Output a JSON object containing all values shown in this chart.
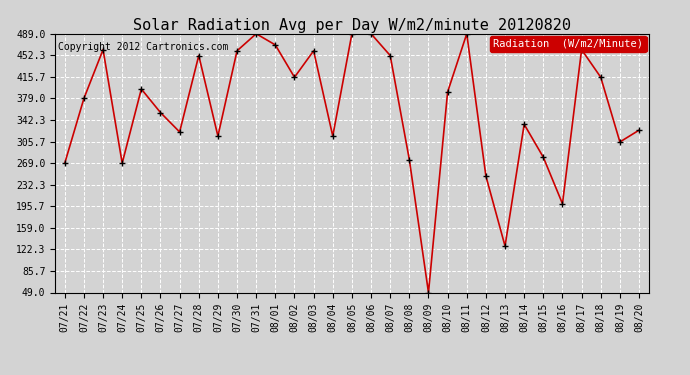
{
  "title": "Solar Radiation Avg per Day W/m2/minute 20120820",
  "copyright": "Copyright 2012 Cartronics.com",
  "legend_label": "Radiation  (W/m2/Minute)",
  "background_color": "#d3d3d3",
  "plot_bg_color": "#d3d3d3",
  "line_color": "#cc0000",
  "marker_color": "#000000",
  "legend_bg": "#cc0000",
  "legend_text_color": "#ffffff",
  "ytick_values": [
    49.0,
    85.7,
    122.3,
    159.0,
    195.7,
    232.3,
    269.0,
    305.7,
    342.3,
    379.0,
    415.7,
    452.3,
    489.0
  ],
  "dates": [
    "07/21",
    "07/22",
    "07/23",
    "07/24",
    "07/25",
    "07/26",
    "07/27",
    "07/28",
    "07/29",
    "07/30",
    "07/31",
    "08/01",
    "08/02",
    "08/03",
    "08/04",
    "08/05",
    "08/06",
    "08/07",
    "08/08",
    "08/09",
    "08/10",
    "08/11",
    "08/12",
    "08/13",
    "08/14",
    "08/15",
    "08/16",
    "08/17",
    "08/18",
    "08/19",
    "08/20"
  ],
  "values": [
    269.0,
    379.0,
    462.0,
    269.0,
    395.0,
    355.0,
    322.0,
    452.0,
    315.0,
    460.0,
    489.0,
    470.0,
    415.0,
    460.0,
    315.0,
    489.0,
    489.0,
    452.0,
    275.0,
    49.0,
    390.0,
    489.0,
    247.0,
    128.0,
    335.0,
    279.0,
    200.0,
    462.0,
    415.0,
    305.0,
    325.0
  ],
  "ylim_min": 49.0,
  "ylim_max": 489.0,
  "title_fontsize": 11,
  "copyright_fontsize": 7,
  "tick_fontsize": 7,
  "legend_fontsize": 7.5
}
